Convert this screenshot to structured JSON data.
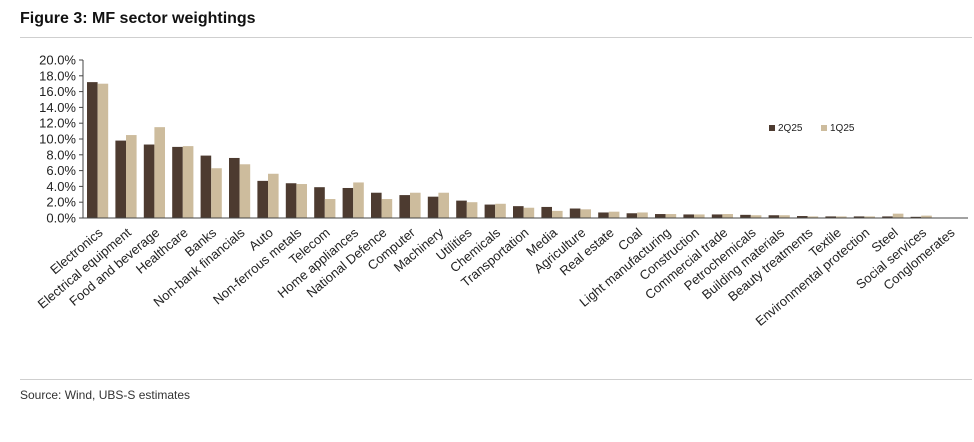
{
  "figure": {
    "title": "Figure 3: MF sector weightings",
    "source": "Source: Wind, UBS-S estimates"
  },
  "colors": {
    "series_2q25": "#4d3b30",
    "series_1q25": "#cdbc9d",
    "axis": "#444444",
    "rules": "#cfcfcf"
  },
  "chart_data": {
    "type": "bar",
    "title": "Figure 3: MF sector weightings",
    "xlabel": "",
    "ylabel": "",
    "ylim": [
      0,
      20
    ],
    "yticks": [
      "0.0%",
      "2.0%",
      "4.0%",
      "6.0%",
      "8.0%",
      "10.0%",
      "12.0%",
      "14.0%",
      "16.0%",
      "18.0%",
      "20.0%"
    ],
    "grid": false,
    "legend_position": "right, inside",
    "categories": [
      "Electronics",
      "Electrical equipment",
      "Food and beverage",
      "Healthcare",
      "Banks",
      "Non-bank financials",
      "Auto",
      "Non-ferrous metals",
      "Telecom",
      "Home appliances",
      "National Defence",
      "Computer",
      "Machinery",
      "Utilities",
      "Chemicals",
      "Transportation",
      "Media",
      "Agriculture",
      "Real estate",
      "Coal",
      "Light manufacturing",
      "Construction",
      "Commercial trade",
      "Petrochemicals",
      "Building materials",
      "Beauty treatments",
      "Textile",
      "Environmental protection",
      "Steel",
      "Social services",
      "Conglomerates"
    ],
    "series": [
      {
        "name": "2Q25",
        "values": [
          17.2,
          9.8,
          9.3,
          9.0,
          7.9,
          7.6,
          4.7,
          4.4,
          3.9,
          3.8,
          3.2,
          2.9,
          2.7,
          2.2,
          1.7,
          1.5,
          1.4,
          1.2,
          0.7,
          0.6,
          0.5,
          0.45,
          0.45,
          0.4,
          0.35,
          0.25,
          0.2,
          0.2,
          0.2,
          0.15,
          0.05
        ]
      },
      {
        "name": "1Q25",
        "values": [
          17.0,
          10.5,
          11.5,
          9.1,
          6.3,
          6.8,
          5.6,
          4.3,
          2.4,
          4.5,
          2.4,
          3.2,
          3.2,
          2.0,
          1.8,
          1.3,
          0.9,
          1.1,
          0.8,
          0.7,
          0.5,
          0.45,
          0.5,
          0.35,
          0.35,
          0.2,
          0.2,
          0.2,
          0.55,
          0.3,
          0.05
        ]
      }
    ]
  }
}
